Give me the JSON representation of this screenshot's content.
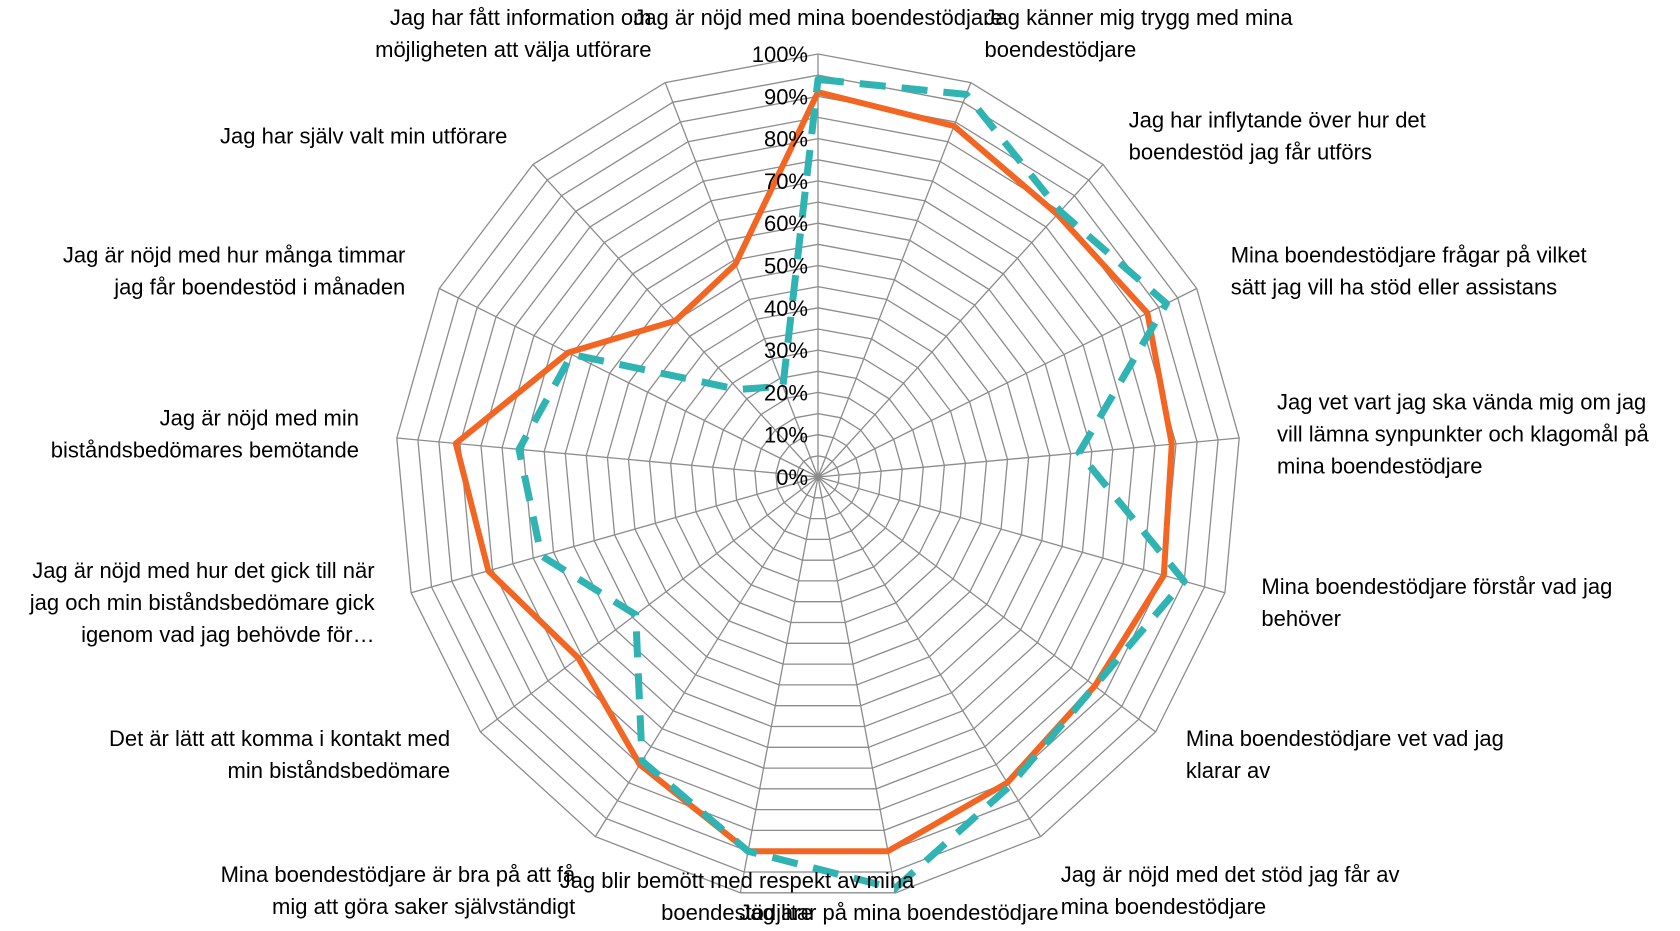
{
  "chart_data": {
    "type": "radar",
    "categories": [
      [
        "Jag är nöjd med mina boendestödjare"
      ],
      [
        "Jag känner mig trygg med mina",
        "boendestödjare"
      ],
      [
        "Jag har inflytande över hur det",
        "boendestöd jag får utförs"
      ],
      [
        "Mina boendestödjare frågar på vilket",
        "sätt jag vill ha stöd eller assistans"
      ],
      [
        "Jag vet vart jag ska vända mig om jag",
        "vill lämna synpunkter och klagomål på",
        "mina boendestödjare"
      ],
      [
        "Mina boendestödjare förstår vad jag",
        "behöver"
      ],
      [
        "Mina boendestödjare vet vad jag",
        "klarar av"
      ],
      [
        "Jag är nöjd med det stöd jag får av",
        "mina boendestödjare"
      ],
      [
        "Jag litar på mina boendestödjare"
      ],
      [
        "Jag blir bemött med respekt av mina",
        "boendestödjare"
      ],
      [
        "Mina boendestödjare är bra på att få",
        "mig att göra saker självständigt"
      ],
      [
        "Det är lätt att komma i kontakt med",
        "min biståndsbedömare"
      ],
      [
        "Jag är nöjd med hur det gick till när",
        "jag och min biståndsbedömare gick",
        "igenom vad jag behövde för…"
      ],
      [
        "Jag är nöjd med min",
        "biståndsbedömares bemötande"
      ],
      [
        "Jag är nöjd med hur många timmar",
        "jag får boendestöd i månaden"
      ],
      [
        "Jag har själv valt min utförare"
      ],
      [
        "Jag har fått information om",
        "möjligheten att välja utförare"
      ]
    ],
    "r_ticks": [
      "0%",
      "10%",
      "20%",
      "30%",
      "40%",
      "50%",
      "60%",
      "70%",
      "80%",
      "90%",
      "100%"
    ],
    "rlim": [
      0,
      100
    ],
    "series": [
      {
        "color": "#F26522",
        "style": "solid",
        "values": [
          91,
          89,
          84,
          87,
          84,
          85,
          82,
          85,
          90,
          90,
          80,
          71,
          81,
          86,
          66,
          50,
          54
        ]
      },
      {
        "color": "#2FB3B3",
        "style": "dashed",
        "values": [
          94,
          97,
          85,
          92,
          62,
          90,
          82,
          86,
          99,
          90,
          79,
          54,
          68,
          71,
          65,
          28,
          23
        ]
      }
    ],
    "grid": true,
    "legend": "none"
  }
}
